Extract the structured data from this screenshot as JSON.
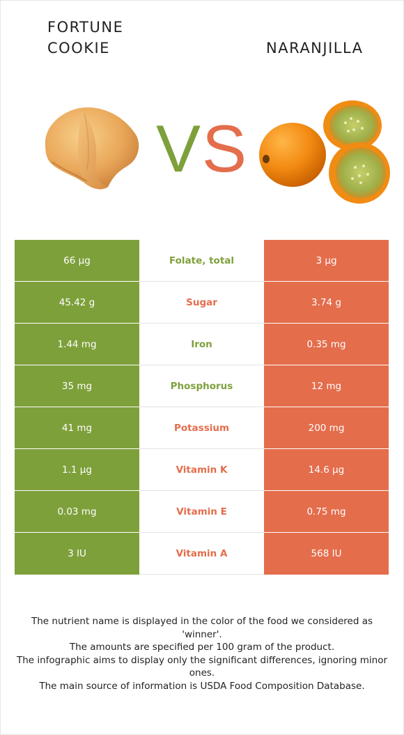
{
  "left_food": {
    "name": "FORTUNE COOKIE",
    "color": "#7ea03b"
  },
  "right_food": {
    "name": "NARANJILLA",
    "color": "#e46d4c"
  },
  "vs": {
    "v": "V",
    "s": "S"
  },
  "rows": [
    {
      "nutrient": "Folate, total",
      "left": "66 µg",
      "right": "3 µg",
      "winner": "left"
    },
    {
      "nutrient": "Sugar",
      "left": "45.42 g",
      "right": "3.74 g",
      "winner": "right"
    },
    {
      "nutrient": "Iron",
      "left": "1.44 mg",
      "right": "0.35 mg",
      "winner": "left"
    },
    {
      "nutrient": "Phosphorus",
      "left": "35 mg",
      "right": "12 mg",
      "winner": "left"
    },
    {
      "nutrient": "Potassium",
      "left": "41 mg",
      "right": "200 mg",
      "winner": "right"
    },
    {
      "nutrient": "Vitamin K",
      "left": "1.1 µg",
      "right": "14.6 µg",
      "winner": "right"
    },
    {
      "nutrient": "Vitamin E",
      "left": "0.03 mg",
      "right": "0.75 mg",
      "winner": "right"
    },
    {
      "nutrient": "Vitamin A",
      "left": "3 IU",
      "right": "568 IU",
      "winner": "right"
    }
  ],
  "footer": [
    "The nutrient name is displayed in the color of the food we considered as 'winner'.",
    "The amounts are specified per 100 gram of the product.",
    "The infographic aims to display only the significant differences, ignoring minor ones.",
    "The main source of information is USDA Food Composition Database."
  ]
}
